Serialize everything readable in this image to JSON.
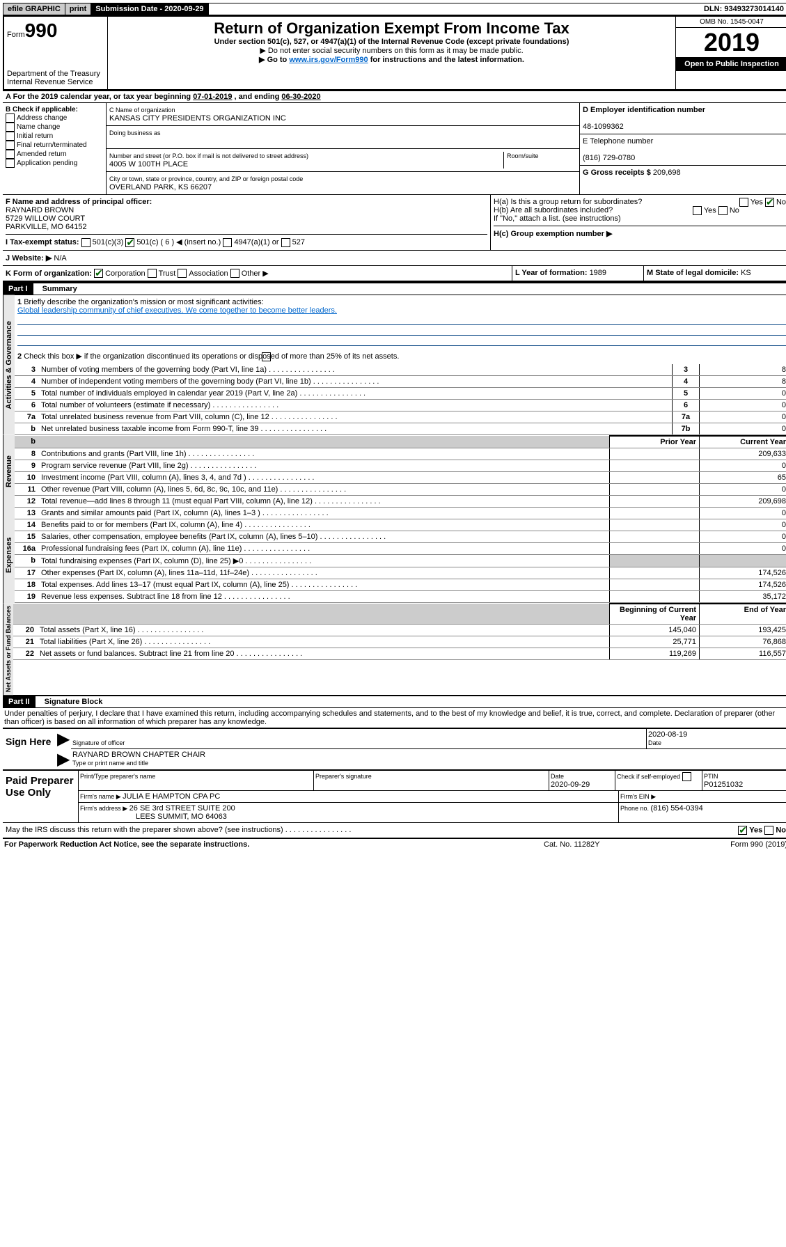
{
  "topbar": {
    "efile": "efile GRAPHIC",
    "print": "print",
    "sub_label": "Submission Date - ",
    "sub_date": "2020-09-29",
    "dln_label": "DLN: ",
    "dln": "93493273014140"
  },
  "header": {
    "form_prefix": "Form",
    "form_no": "990",
    "dept1": "Department of the Treasury",
    "dept2": "Internal Revenue Service",
    "title": "Return of Organization Exempt From Income Tax",
    "sub1": "Under section 501(c), 527, or 4947(a)(1) of the Internal Revenue Code (except private foundations)",
    "sub2": "▶ Do not enter social security numbers on this form as it may be made public.",
    "sub3a": "▶ Go to ",
    "sub3b": "www.irs.gov/Form990",
    "sub3c": " for instructions and the latest information.",
    "omb": "OMB No. 1545-0047",
    "year": "2019",
    "open": "Open to Public Inspection"
  },
  "rowA": {
    "text_a": "A For the 2019 calendar year, or tax year beginning ",
    "begin": "07-01-2019",
    "mid": " , and ending ",
    "end": "06-30-2020"
  },
  "B": {
    "label": "B Check if applicable:",
    "opts": [
      "Address change",
      "Name change",
      "Initial return",
      "Final return/terminated",
      "Amended return",
      "Application pending"
    ]
  },
  "C": {
    "name_label": "C Name of organization",
    "name": "KANSAS CITY PRESIDENTS ORGANIZATION INC",
    "dba_label": "Doing business as",
    "street_label": "Number and street (or P.O. box if mail is not delivered to street address)",
    "room_label": "Room/suite",
    "street": "4005 W 100TH PLACE",
    "city_label": "City or town, state or province, country, and ZIP or foreign postal code",
    "city": "OVERLAND PARK, KS  66207"
  },
  "D": {
    "label": "D Employer identification number",
    "val": "48-1099362"
  },
  "E": {
    "label": "E Telephone number",
    "val": "(816) 729-0780"
  },
  "G": {
    "label": "G Gross receipts $ ",
    "val": "209,698"
  },
  "F": {
    "label": "F  Name and address of principal officer:",
    "name": "RAYNARD BROWN",
    "street": "5729 WILLOW COURT",
    "city": "PARKVILLE, MO  64152"
  },
  "H": {
    "a": "H(a)  Is this a group return for subordinates?",
    "b": "H(b)  Are all subordinates included?",
    "b2": "If \"No,\" attach a list. (see instructions)",
    "c": "H(c)  Group exemption number ▶",
    "yes": "Yes",
    "no": "No"
  },
  "I": {
    "label": "I  Tax-exempt status:",
    "o1": "501(c)(3)",
    "o2": "501(c) ( 6 ) ◀ (insert no.)",
    "o3": "4947(a)(1) or",
    "o4": "527"
  },
  "J": {
    "label": "J  Website: ▶",
    "val": "  N/A"
  },
  "K": {
    "label": "K Form of organization:",
    "o1": "Corporation",
    "o2": "Trust",
    "o3": "Association",
    "o4": "Other ▶"
  },
  "L": {
    "label": "L Year of formation: ",
    "val": "1989"
  },
  "M": {
    "label": "M State of legal domicile: ",
    "val": "KS"
  },
  "part1": {
    "hdr": "Part I",
    "title": "Summary",
    "q1": "Briefly describe the organization's mission or most significant activities:",
    "mission": "Global leadership community of chief executives. We come together to become better leaders.",
    "q2": "Check this box ▶       if the organization discontinued its operations or disposed of more than 25% of its net assets.",
    "vlab_ag": "Activities & Governance",
    "vlab_rev": "Revenue",
    "vlab_exp": "Expenses",
    "vlab_net": "Net Assets or Fund Balances",
    "col_prior": "Prior Year",
    "col_curr": "Current Year",
    "col_beg": "Beginning of Current Year",
    "col_end": "End of Year",
    "lines_ag": [
      {
        "n": "3",
        "t": "Number of voting members of the governing body (Part VI, line 1a)",
        "k": "3",
        "v": "8"
      },
      {
        "n": "4",
        "t": "Number of independent voting members of the governing body (Part VI, line 1b)",
        "k": "4",
        "v": "8"
      },
      {
        "n": "5",
        "t": "Total number of individuals employed in calendar year 2019 (Part V, line 2a)",
        "k": "5",
        "v": "0"
      },
      {
        "n": "6",
        "t": "Total number of volunteers (estimate if necessary)",
        "k": "6",
        "v": "0"
      },
      {
        "n": "7a",
        "t": "Total unrelated business revenue from Part VIII, column (C), line 12",
        "k": "7a",
        "v": "0"
      },
      {
        "n": "b",
        "t": "Net unrelated business taxable income from Form 990-T, line 39",
        "k": "7b",
        "v": "0"
      }
    ],
    "lines_rev": [
      {
        "n": "8",
        "t": "Contributions and grants (Part VIII, line 1h)",
        "p": "",
        "c": "209,633"
      },
      {
        "n": "9",
        "t": "Program service revenue (Part VIII, line 2g)",
        "p": "",
        "c": "0"
      },
      {
        "n": "10",
        "t": "Investment income (Part VIII, column (A), lines 3, 4, and 7d )",
        "p": "",
        "c": "65"
      },
      {
        "n": "11",
        "t": "Other revenue (Part VIII, column (A), lines 5, 6d, 8c, 9c, 10c, and 11e)",
        "p": "",
        "c": "0"
      },
      {
        "n": "12",
        "t": "Total revenue—add lines 8 through 11 (must equal Part VIII, column (A), line 12)",
        "p": "",
        "c": "209,698"
      }
    ],
    "lines_exp": [
      {
        "n": "13",
        "t": "Grants and similar amounts paid (Part IX, column (A), lines 1–3 )",
        "p": "",
        "c": "0"
      },
      {
        "n": "14",
        "t": "Benefits paid to or for members (Part IX, column (A), line 4)",
        "p": "",
        "c": "0"
      },
      {
        "n": "15",
        "t": "Salaries, other compensation, employee benefits (Part IX, column (A), lines 5–10)",
        "p": "",
        "c": "0"
      },
      {
        "n": "16a",
        "t": "Professional fundraising fees (Part IX, column (A), line 11e)",
        "p": "",
        "c": "0"
      },
      {
        "n": "b",
        "t": "Total fundraising expenses (Part IX, column (D), line 25) ▶0",
        "p": "shade",
        "c": "shade"
      },
      {
        "n": "17",
        "t": "Other expenses (Part IX, column (A), lines 11a–11d, 11f–24e)",
        "p": "",
        "c": "174,526"
      },
      {
        "n": "18",
        "t": "Total expenses. Add lines 13–17 (must equal Part IX, column (A), line 25)",
        "p": "",
        "c": "174,526"
      },
      {
        "n": "19",
        "t": "Revenue less expenses. Subtract line 18 from line 12",
        "p": "",
        "c": "35,172"
      }
    ],
    "lines_net": [
      {
        "n": "20",
        "t": "Total assets (Part X, line 16)",
        "p": "145,040",
        "c": "193,425"
      },
      {
        "n": "21",
        "t": "Total liabilities (Part X, line 26)",
        "p": "25,771",
        "c": "76,868"
      },
      {
        "n": "22",
        "t": "Net assets or fund balances. Subtract line 21 from line 20",
        "p": "119,269",
        "c": "116,557"
      }
    ]
  },
  "part2": {
    "hdr": "Part II",
    "title": "Signature Block",
    "perjury": "Under penalties of perjury, I declare that I have examined this return, including accompanying schedules and statements, and to the best of my knowledge and belief, it is true, correct, and complete. Declaration of preparer (other than officer) is based on all information of which preparer has any knowledge.",
    "sign_here": "Sign Here",
    "sig_officer": "Signature of officer",
    "sig_date": "2020-08-19",
    "date_lbl": "Date",
    "name_title": "RAYNARD BROWN  CHAPTER CHAIR",
    "name_title_lbl": "Type or print name and title",
    "paid": "Paid Preparer Use Only",
    "prep_name_lbl": "Print/Type preparer's name",
    "prep_sig_lbl": "Preparer's signature",
    "prep_date_lbl": "Date",
    "prep_date": "2020-09-29",
    "self_emp": "Check       if self-employed",
    "ptin_lbl": "PTIN",
    "ptin": "P01251032",
    "firm_name_lbl": "Firm's name    ▶ ",
    "firm_name": "JULIA E HAMPTON CPA PC",
    "firm_ein_lbl": "Firm's EIN ▶",
    "firm_addr_lbl": "Firm's address ▶ ",
    "firm_addr1": "26 SE 3rd STREET SUITE 200",
    "firm_addr2": "LEES SUMMIT, MO  64063",
    "firm_phone_lbl": "Phone no. ",
    "firm_phone": "(816) 554-0394",
    "discuss": "May the IRS discuss this return with the preparer shown above? (see instructions)",
    "footer_l": "For Paperwork Reduction Act Notice, see the separate instructions.",
    "footer_m": "Cat. No. 11282Y",
    "footer_r": "Form 990 (2019)"
  }
}
